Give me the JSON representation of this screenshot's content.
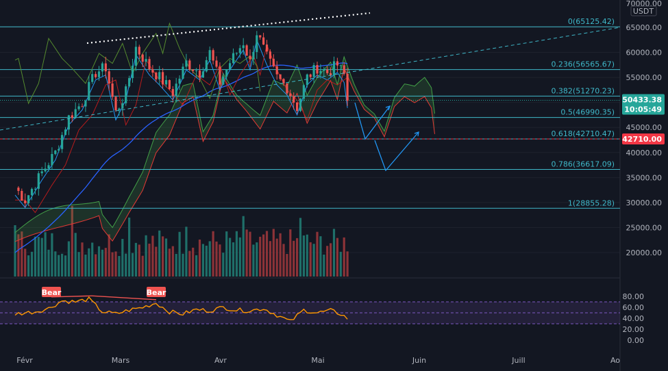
{
  "chart_data": {
    "type": "candlestick",
    "symbol_currency": "USDT",
    "price_axis": {
      "min": 15000,
      "max": 70000,
      "tick_values": [
        20000,
        25000,
        30000,
        35000,
        40000,
        45000,
        50000,
        55000,
        60000,
        65000
      ],
      "tick_labels": [
        "20000.00",
        "25000.00",
        "30000.00",
        "35000.00",
        "40000.00",
        "45000.00",
        "50000.00",
        "55000.00",
        "60000.00",
        "65000.00"
      ],
      "top_label": "70000.00"
    },
    "oscillator_axis": {
      "min": 0,
      "max": 100,
      "tick_values": [
        0,
        20,
        40,
        60,
        80
      ],
      "tick_labels": [
        "0.00",
        "20.00",
        "40.00",
        "60.00",
        "80.00"
      ],
      "band_upper": 70,
      "band_lower": 30,
      "midline": 50
    },
    "time_axis": {
      "labels": [
        "Févr",
        "Mars",
        "Avr",
        "Mai",
        "Juin",
        "Juill",
        "Ao"
      ]
    },
    "current_price": {
      "label": "50433.38",
      "countdown": "10:05:49",
      "value": 50433.38,
      "color": "#26a69a"
    },
    "horizontal_level": {
      "label": "42710.00",
      "value": 42710,
      "color": "#f23645"
    },
    "fibonacci": [
      {
        "label": "0(65125.42)",
        "value": 65125.42
      },
      {
        "label": "0.236(56565.67)",
        "value": 56565.67
      },
      {
        "label": "0.382(51270.23)",
        "value": 51270.23
      },
      {
        "label": "0.5(46990.35)",
        "value": 46990.35
      },
      {
        "label": "0.618(42710.47)",
        "value": 42710.47
      },
      {
        "label": "0.786(36617.09)",
        "value": 36617.09
      },
      {
        "label": "1(28855.28)",
        "value": 28855.28
      }
    ],
    "divergence_labels": [
      "Bear",
      "Bear"
    ],
    "colors": {
      "up": "#26a69a",
      "down": "#ef5350",
      "fib": "#3fb8c9",
      "ema": "#2962ff",
      "rsi": "#ff9800",
      "cloud_green": "#4caf50",
      "cloud_red": "#f23645"
    }
  }
}
